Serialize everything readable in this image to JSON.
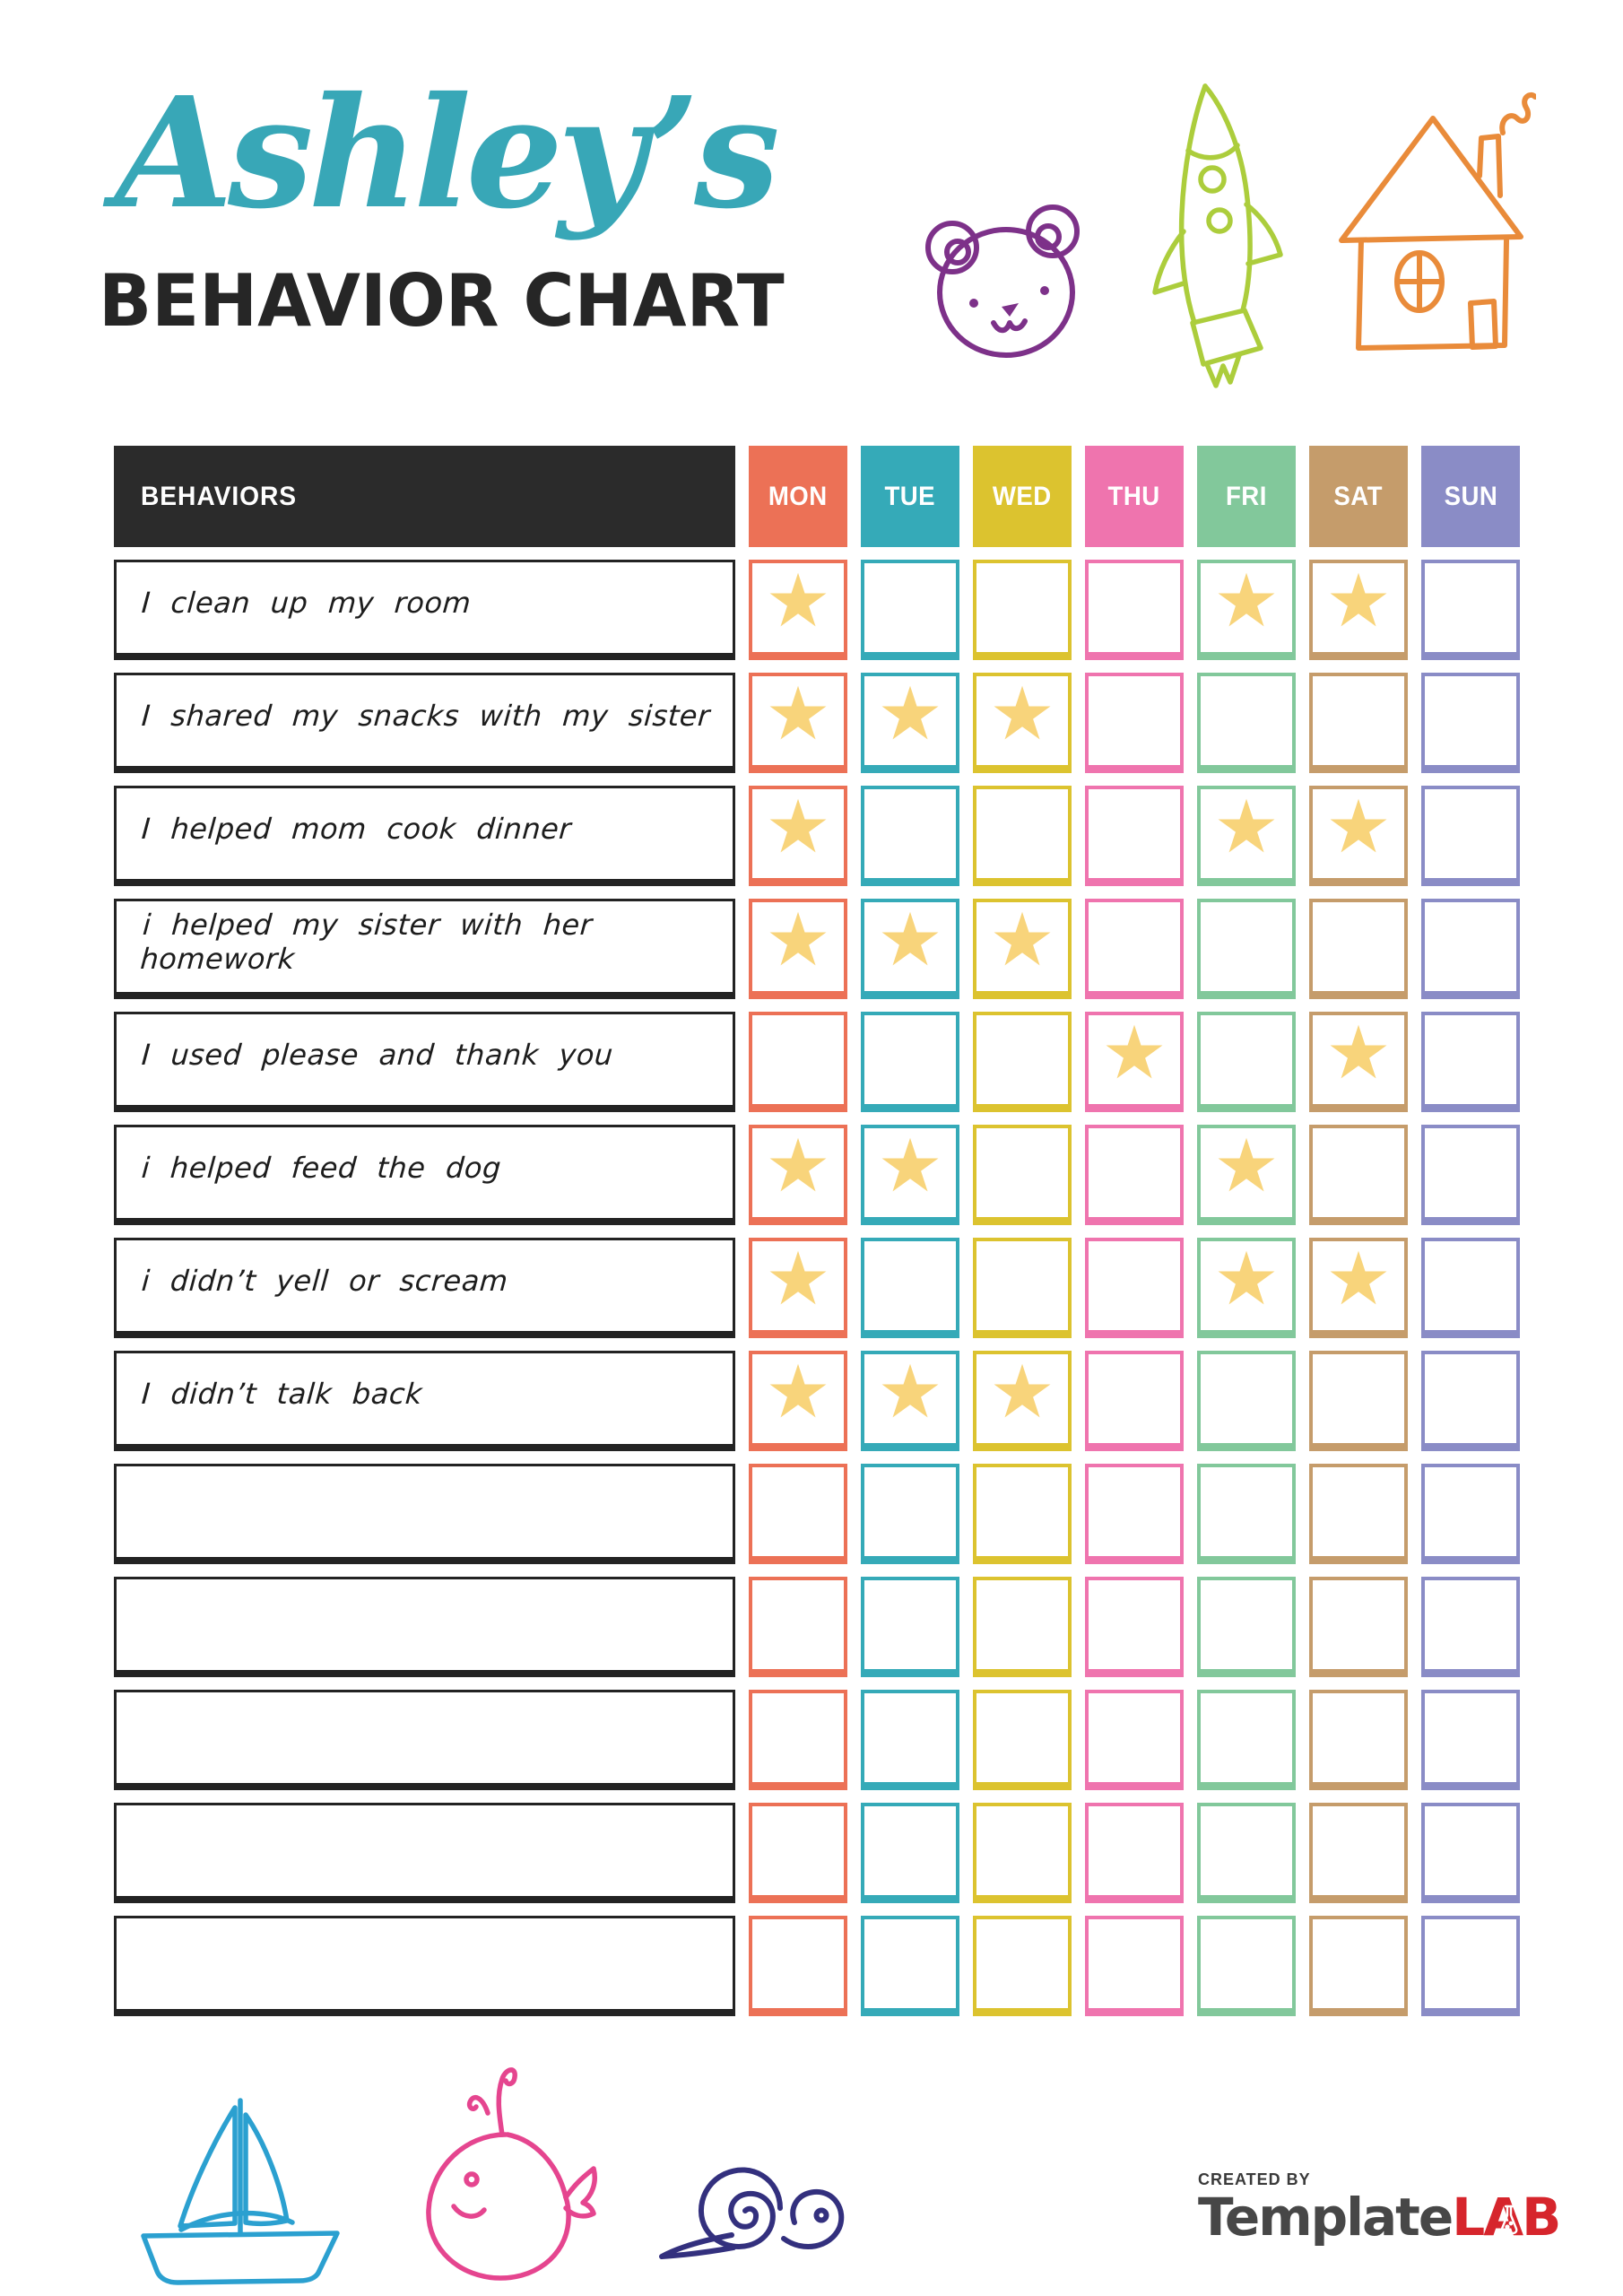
{
  "title": {
    "script": "Ashley’s",
    "main": "BEHAVIOR CHART"
  },
  "colors": {
    "title_script": "#38a7b7",
    "title_main": "#262626",
    "header_bg": "#2b2b2b",
    "header_text": "#ffffff",
    "star": "#f8d47b",
    "row_border": "#232323"
  },
  "icons": {
    "star_glyph": "★"
  },
  "table": {
    "behaviors_header": "BEHAVIORS",
    "days": [
      {
        "label": "MON",
        "color": "#ec7156"
      },
      {
        "label": "TUE",
        "color": "#35aab8"
      },
      {
        "label": "WED",
        "color": "#dcc32f"
      },
      {
        "label": "THU",
        "color": "#ef74ae"
      },
      {
        "label": "FRI",
        "color": "#82c89b"
      },
      {
        "label": "SAT",
        "color": "#c59c6b"
      },
      {
        "label": "SUN",
        "color": "#8a8cc6"
      }
    ],
    "rows": [
      {
        "label": "I clean up my room",
        "stars": [
          "MON",
          "FRI",
          "SAT"
        ]
      },
      {
        "label": "I shared my snacks with my sister",
        "stars": [
          "MON",
          "TUE",
          "WED"
        ]
      },
      {
        "label": "I helped mom cook dinner",
        "stars": [
          "MON",
          "FRI",
          "SAT"
        ]
      },
      {
        "label": "i helped my sister with her homework",
        "stars": [
          "MON",
          "TUE",
          "WED"
        ]
      },
      {
        "label": "I used please and thank you",
        "stars": [
          "THU",
          "SAT"
        ]
      },
      {
        "label": "i helped feed the dog",
        "stars": [
          "MON",
          "TUE",
          "FRI"
        ]
      },
      {
        "label": "i didn’t yell or scream",
        "stars": [
          "MON",
          "FRI",
          "SAT"
        ]
      },
      {
        "label": "I didn’t talk back",
        "stars": [
          "MON",
          "TUE",
          "WED"
        ]
      },
      {
        "label": "",
        "stars": []
      },
      {
        "label": "",
        "stars": []
      },
      {
        "label": "",
        "stars": []
      },
      {
        "label": "",
        "stars": []
      },
      {
        "label": "",
        "stars": []
      }
    ]
  },
  "decorations": {
    "doodle_colors": {
      "bear": "#7d3189",
      "rocket": "#accd3c",
      "house": "#e98b3a",
      "sailboat": "#2ba0d0",
      "whale": "#e5458f",
      "snail": "#33307e"
    }
  },
  "footer": {
    "created_by": "CREATED BY",
    "brand_primary": "Template",
    "brand_secondary": "LAB",
    "brand_color_primary": "#474747",
    "brand_color_secondary": "#d6252c"
  }
}
